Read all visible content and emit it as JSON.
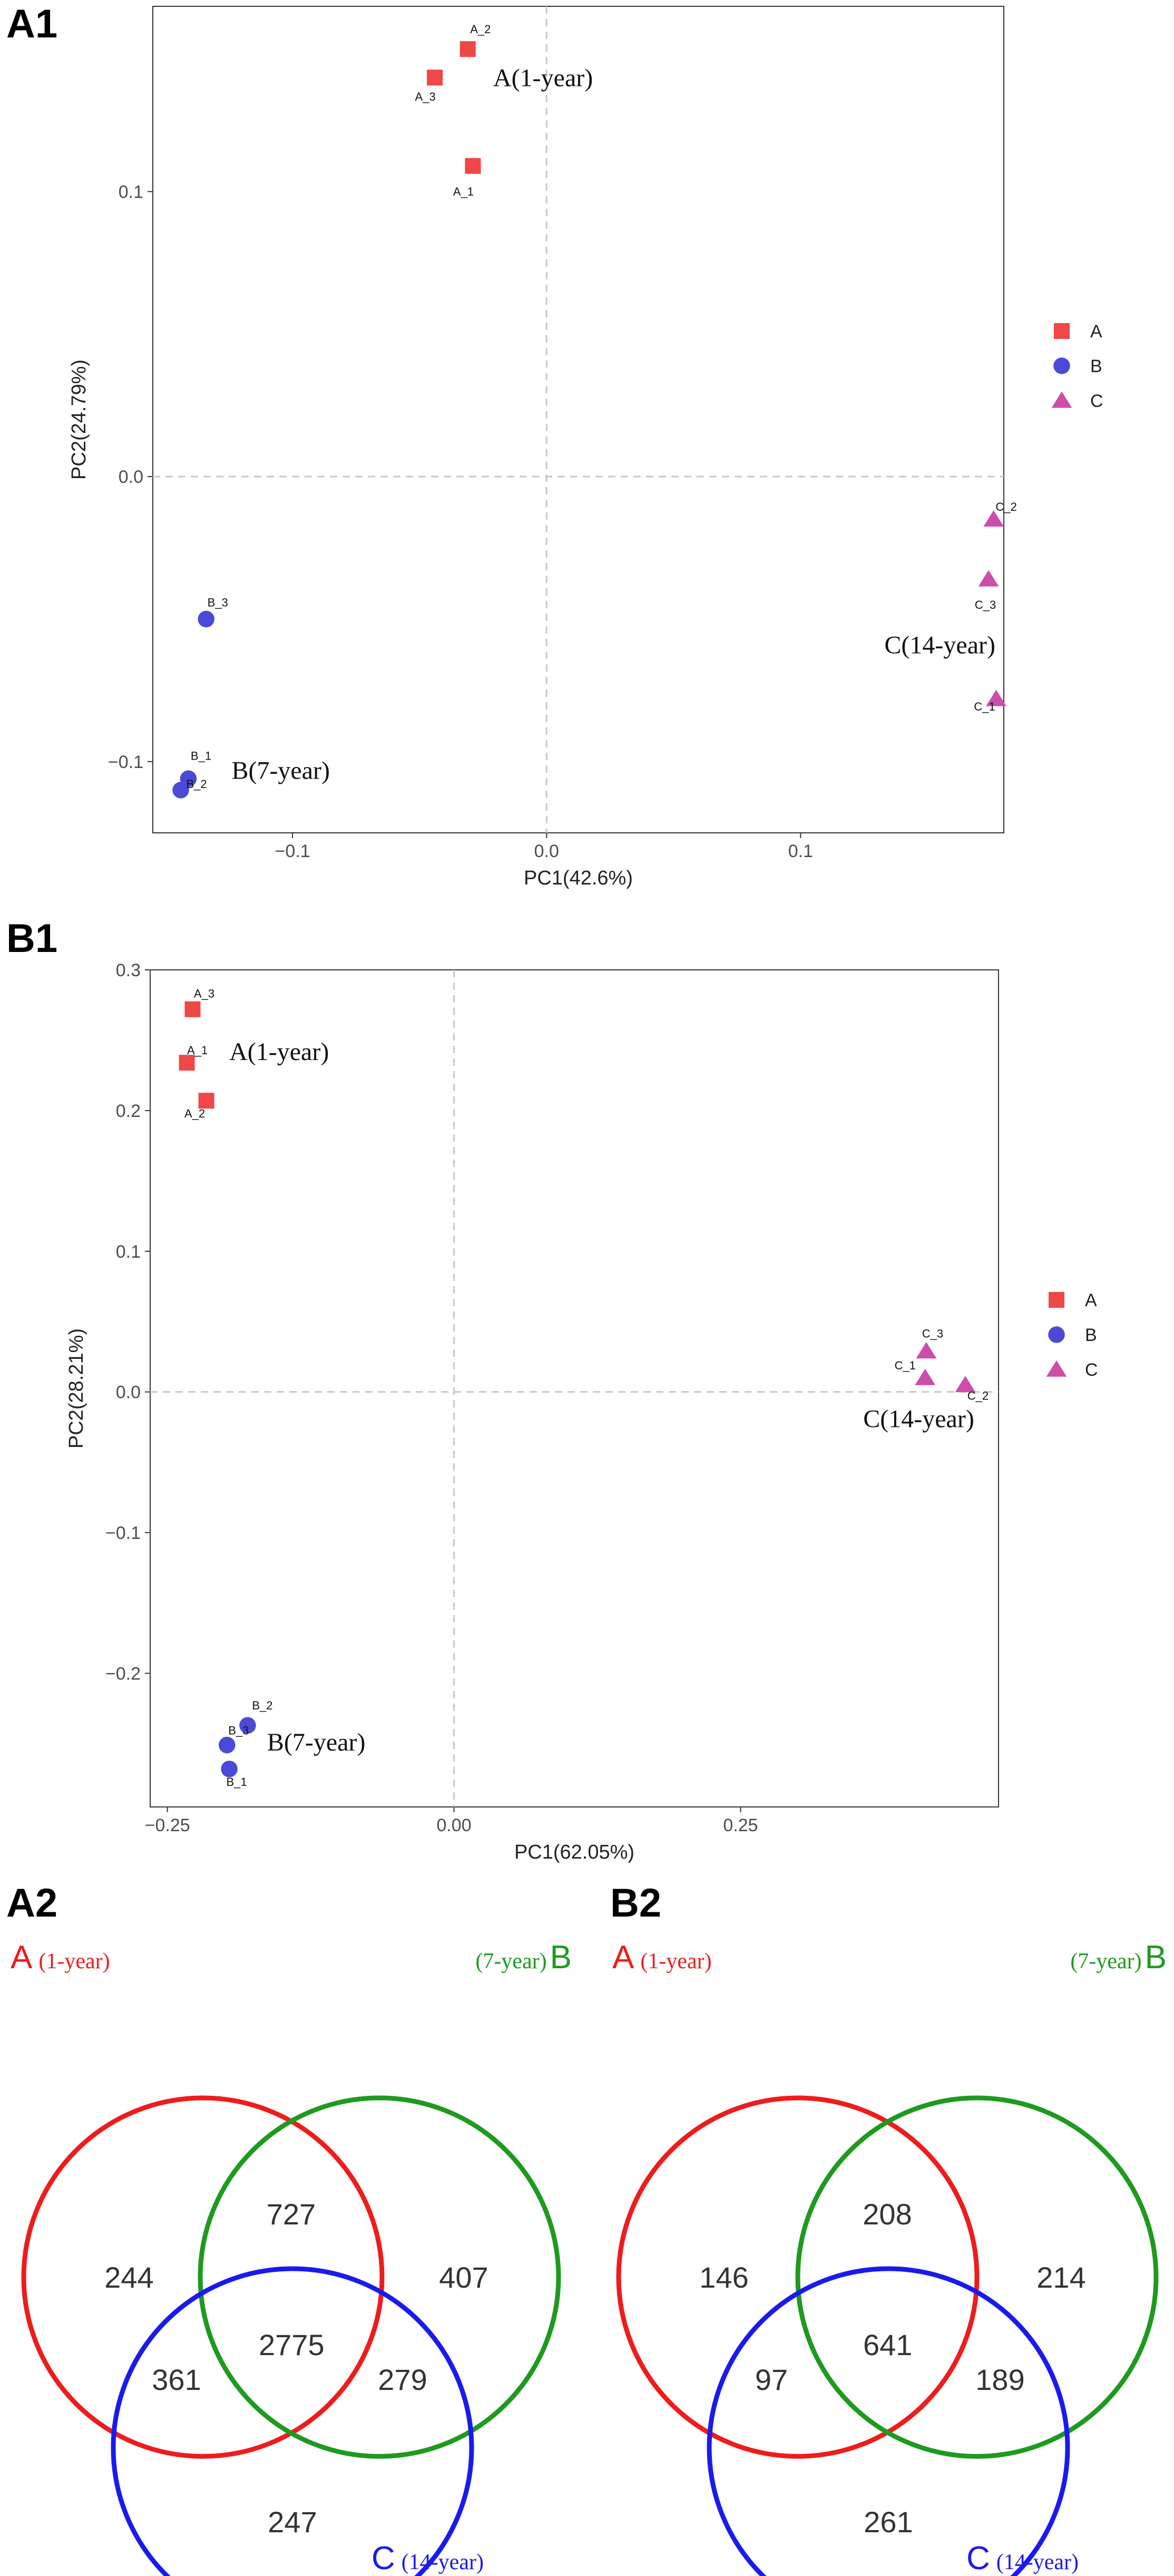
{
  "colors": {
    "A": "#f04747",
    "B": "#4a4ad6",
    "C": "#cc4daa",
    "vennA": "#ee1c1c",
    "vennB": "#1e9a1e",
    "vennC": "#1a1aee"
  },
  "chart_data": [
    {
      "type": "scatter",
      "panel": "A1",
      "xlabel": "PC1(42.6%)",
      "ylabel": "PC2(24.79%)",
      "xlim": [
        -0.155,
        0.18
      ],
      "ylim": [
        -0.125,
        0.165
      ],
      "xticks": [
        {
          "v": -0.1,
          "label": "−0.1"
        },
        {
          "v": 0.0,
          "label": "0.0"
        },
        {
          "v": 0.1,
          "label": "0.1"
        }
      ],
      "yticks": [
        {
          "v": 0.1,
          "label": "0.1"
        },
        {
          "v": 0.0,
          "label": "0.0"
        },
        {
          "v": -0.1,
          "label": "−0.1"
        }
      ],
      "grid": false,
      "legend_position": "right",
      "points": [
        {
          "group": "A",
          "label": "A_2",
          "x": -0.031,
          "y": 0.15
        },
        {
          "group": "A",
          "label": "A_3",
          "x": -0.044,
          "y": 0.14
        },
        {
          "group": "A",
          "label": "A_1",
          "x": -0.029,
          "y": 0.109
        },
        {
          "group": "B",
          "label": "B_3",
          "x": -0.134,
          "y": -0.05
        },
        {
          "group": "B",
          "label": "B_1",
          "x": -0.141,
          "y": -0.106
        },
        {
          "group": "B",
          "label": "B_2",
          "x": -0.144,
          "y": -0.11
        },
        {
          "group": "C",
          "label": "C_2",
          "x": 0.176,
          "y": -0.015
        },
        {
          "group": "C",
          "label": "C_3",
          "x": 0.174,
          "y": -0.036
        },
        {
          "group": "C",
          "label": "C_1",
          "x": 0.177,
          "y": -0.078
        }
      ],
      "annotations": [
        {
          "text": "A(1-year)",
          "x": -0.021,
          "y": 0.137
        },
        {
          "text": "B(7-year)",
          "x": -0.124,
          "y": -0.106
        },
        {
          "text": "C(14-year)",
          "x": 0.133,
          "y": -0.062
        }
      ],
      "legend": [
        "A",
        "B",
        "C"
      ]
    },
    {
      "type": "scatter",
      "panel": "B1",
      "xlabel": "PC1(62.05%)",
      "ylabel": "PC2(28.21%)",
      "xlim": [
        -0.265,
        0.475
      ],
      "ylim": [
        -0.295,
        0.3
      ],
      "xticks": [
        {
          "v": -0.25,
          "label": "−0.25"
        },
        {
          "v": 0.0,
          "label": "0.00"
        },
        {
          "v": 0.25,
          "label": "0.25"
        }
      ],
      "yticks": [
        {
          "v": 0.3,
          "label": "0.3"
        },
        {
          "v": 0.2,
          "label": "0.2"
        },
        {
          "v": 0.1,
          "label": "0.1"
        },
        {
          "v": 0.0,
          "label": "0.0"
        },
        {
          "v": -0.1,
          "label": "−0.1"
        },
        {
          "v": -0.2,
          "label": "−0.2"
        }
      ],
      "grid": false,
      "legend_position": "right",
      "points": [
        {
          "group": "A",
          "label": "A_3",
          "x": -0.228,
          "y": 0.272
        },
        {
          "group": "A",
          "label": "A_1",
          "x": -0.233,
          "y": 0.234
        },
        {
          "group": "A",
          "label": "A_2",
          "x": -0.216,
          "y": 0.207
        },
        {
          "group": "B",
          "label": "B_2",
          "x": -0.18,
          "y": -0.237
        },
        {
          "group": "B",
          "label": "B_3",
          "x": -0.198,
          "y": -0.251
        },
        {
          "group": "B",
          "label": "B_1",
          "x": -0.196,
          "y": -0.268
        },
        {
          "group": "C",
          "label": "C_3",
          "x": 0.412,
          "y": 0.029
        },
        {
          "group": "C",
          "label": "C_1",
          "x": 0.411,
          "y": 0.01
        },
        {
          "group": "C",
          "label": "C_2",
          "x": 0.446,
          "y": 0.005
        }
      ],
      "annotations": [
        {
          "text": "A(1-year)",
          "x": -0.196,
          "y": 0.236
        },
        {
          "text": "B(7-year)",
          "x": -0.163,
          "y": -0.255
        },
        {
          "text": "C(14-year)",
          "x": 0.357,
          "y": -0.025
        }
      ],
      "legend": [
        "A",
        "B",
        "C"
      ]
    }
  ],
  "venns": [
    {
      "panel": "A2",
      "labels": {
        "A_letter": "A",
        "A_year": "(1-year)",
        "B_year": "(7-year)",
        "B_letter": "B",
        "C_letter": "C",
        "C_year": "(14-year)"
      },
      "regions": {
        "A_only": "244",
        "AB": "727",
        "B_only": "407",
        "AC": "361",
        "ABC": "2775",
        "BC": "279",
        "C_only": "247"
      }
    },
    {
      "panel": "B2",
      "labels": {
        "A_letter": "A",
        "A_year": "(1-year)",
        "B_year": "(7-year)",
        "B_letter": "B",
        "C_letter": "C",
        "C_year": "(14-year)"
      },
      "regions": {
        "A_only": "146",
        "AB": "208",
        "B_only": "214",
        "AC": "97",
        "ABC": "641",
        "BC": "189",
        "C_only": "261"
      }
    }
  ]
}
